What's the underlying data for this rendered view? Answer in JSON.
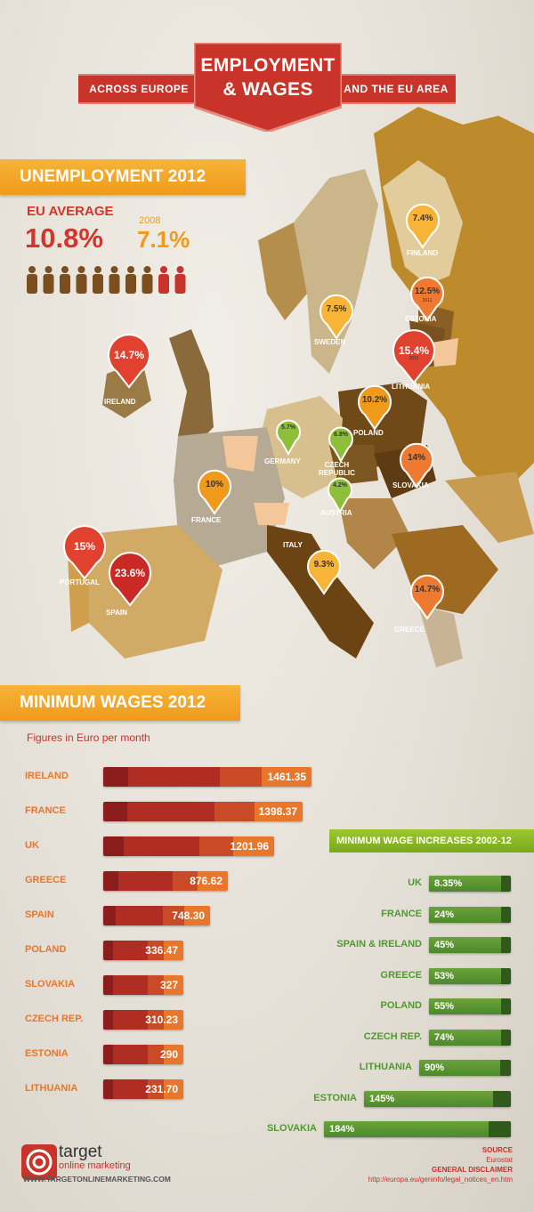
{
  "header": {
    "left_ribbon": "ACROSS EUROPE",
    "title_line1": "EMPLOYMENT",
    "title_line2": "& WAGES",
    "right_ribbon": "AND THE EU AREA"
  },
  "unemployment": {
    "heading": "UNEMPLOYMENT 2012",
    "eu_average_label": "EU AVERAGE",
    "eu_average_value": "10.8%",
    "year_2008_label": "2008",
    "year_2008_value": "7.1%",
    "pins": [
      {
        "country": "FINLAND",
        "value": "7.4%",
        "note": "",
        "color": "#f7b437"
      },
      {
        "country": "ESTONIA",
        "value": "12.5%",
        "note": "2011",
        "color": "#ee7a31"
      },
      {
        "country": "SWEDEN",
        "value": "7.5%",
        "note": "",
        "color": "#f7b437"
      },
      {
        "country": "LITHUANIA",
        "value": "15.4%",
        "note": "2011",
        "color": "#e0422f"
      },
      {
        "country": "IRELAND",
        "value": "14.7%",
        "note": "",
        "color": "#e0422f"
      },
      {
        "country": "POLAND",
        "value": "10.2%",
        "note": "",
        "color": "#f09a1c"
      },
      {
        "country": "GERMANY",
        "value": "5.7%",
        "note": "",
        "color": "#8dbf3a"
      },
      {
        "country": "CZECH REPUBLIC",
        "value": "6.8%",
        "note": "",
        "color": "#8dbf3a"
      },
      {
        "country": "SLOVAKIA",
        "value": "14%",
        "note": "",
        "color": "#ee7a31"
      },
      {
        "country": "FRANCE",
        "value": "10%",
        "note": "",
        "color": "#f09a1c"
      },
      {
        "country": "AUSTRIA",
        "value": "4.2%",
        "note": "",
        "color": "#8dbf3a"
      },
      {
        "country": "PORTUGAL",
        "value": "15%",
        "note": "",
        "color": "#e0422f"
      },
      {
        "country": "SPAIN",
        "value": "23.6%",
        "note": "",
        "color": "#c92a26"
      },
      {
        "country": "ITALY",
        "value": "9.3%",
        "note": "",
        "color": "#f7b437"
      },
      {
        "country": "GREECE",
        "value": "14.7%",
        "note": "",
        "color": "#ee7a31"
      }
    ]
  },
  "chart_data": [
    {
      "type": "bar",
      "title": "MINIMUM WAGES 2012",
      "subtitle": "Figures in Euro per month",
      "categories": [
        "IRELAND",
        "FRANCE",
        "UK",
        "GREECE",
        "SPAIN",
        "POLAND",
        "SLOVAKIA",
        "CZECH REP.",
        "ESTONIA",
        "LITHUANIA"
      ],
      "values": [
        1461.35,
        1398.37,
        1201.96,
        876.62,
        748.3,
        336.47,
        327,
        310.23,
        290,
        231.7
      ],
      "labels": [
        "1461.35",
        "1398.37",
        "1201.96",
        "876.62",
        "748.30",
        "336.47",
        "327",
        "310.23",
        "290",
        "231.70"
      ]
    },
    {
      "type": "bar",
      "title": "MINIMUM WAGE INCREASES 2002-12",
      "categories": [
        "UK",
        "FRANCE",
        "SPAIN & IRELAND",
        "GREECE",
        "POLAND",
        "CZECH REP.",
        "LITHUANIA",
        "ESTONIA",
        "SLOVAKIA"
      ],
      "values": [
        8.35,
        24,
        45,
        53,
        55,
        74,
        90,
        145,
        184
      ],
      "labels": [
        "8.35%",
        "24%",
        "45%",
        "53%",
        "55%",
        "74%",
        "90%",
        "145%",
        "184%"
      ]
    }
  ],
  "footer": {
    "logo_top": "target",
    "logo_bottom": "online marketing",
    "url": "WWW.TARGETONLINEMARKETING.COM",
    "source_label": "SOURCE",
    "source_value": "Eurostat",
    "disclaimer_label": "GENERAL DISCLAIMER",
    "disclaimer_url": "http://europa.eu/geninfo/legal_notices_en.htm"
  },
  "colors": {
    "red": "#c8342a",
    "orange": "#f09a1c",
    "green": "#79a81d"
  }
}
